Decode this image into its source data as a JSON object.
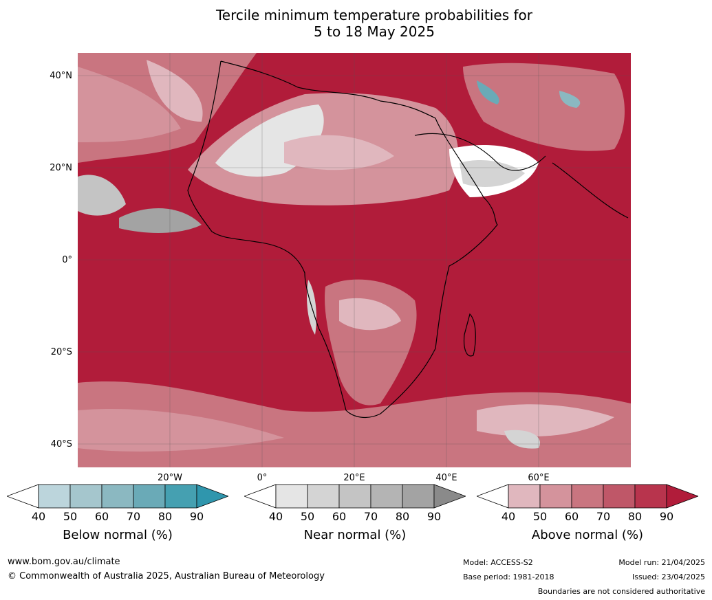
{
  "title": {
    "line1": "Tercile minimum temperature probabilities for",
    "line2": "5 to 18 May 2025"
  },
  "axes": {
    "lat_labels": [
      "40°N",
      "20°N",
      "0°",
      "20°S",
      "40°S"
    ],
    "lon_labels": [
      "20°W",
      "0°",
      "20°E",
      "40°E",
      "60°E"
    ]
  },
  "colorbars": [
    {
      "label": "Below normal (%)",
      "ticks": [
        "40",
        "50",
        "60",
        "70",
        "80",
        "90"
      ],
      "colors": [
        "#ffffff",
        "#bcd5dc",
        "#a5c6cd",
        "#8bb8c1",
        "#6aaab7",
        "#45a0b1",
        "#2f96ad"
      ]
    },
    {
      "label": "Near normal (%)",
      "ticks": [
        "40",
        "50",
        "60",
        "70",
        "80",
        "90"
      ],
      "colors": [
        "#ffffff",
        "#e5e5e5",
        "#d4d4d4",
        "#c4c4c4",
        "#b4b4b4",
        "#a3a3a3",
        "#8a8a8a"
      ]
    },
    {
      "label": "Above normal (%)",
      "ticks": [
        "40",
        "50",
        "60",
        "70",
        "80",
        "90"
      ],
      "colors": [
        "#ffffff",
        "#e0b7be",
        "#d4939c",
        "#c97580",
        "#bf5768",
        "#b8344d",
        "#b11c3a"
      ]
    }
  ],
  "footer": {
    "website": "www.bom.gov.au/climate",
    "copyright": "© Commonwealth of Australia 2025, Australian Bureau of Meteorology",
    "model": "Model: ACCESS-S2",
    "base_period": "Base period: 1981-2018",
    "model_run": "Model run: 21/04/2025",
    "issued": "Issued: 23/04/2025",
    "disclaimer": "Boundaries are not considered authoritative"
  }
}
